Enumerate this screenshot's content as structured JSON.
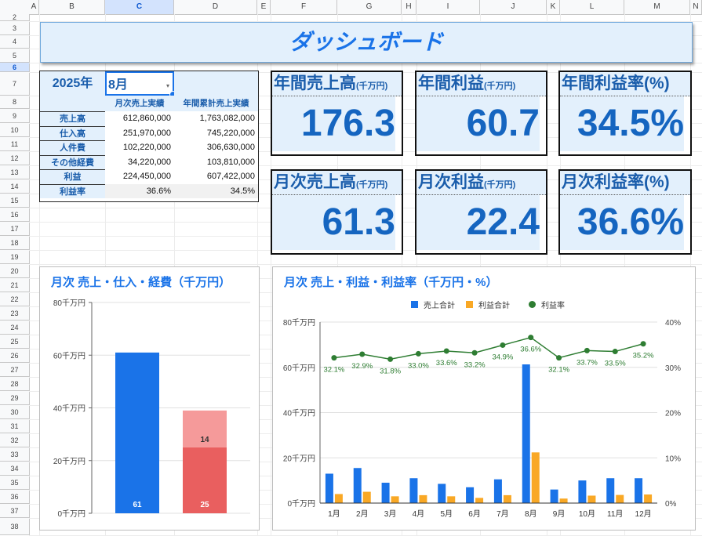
{
  "sheet": {
    "columns": [
      "A",
      "B",
      "C",
      "D",
      "E",
      "F",
      "G",
      "H",
      "I",
      "J",
      "K",
      "L",
      "M",
      "N"
    ],
    "selected_column": "C",
    "rows": [
      "2",
      "3",
      "4",
      "5",
      "6",
      "7",
      "8",
      "9",
      "10",
      "11",
      "12",
      "13",
      "14",
      "15",
      "16",
      "17",
      "18",
      "19",
      "20",
      "21",
      "22",
      "23",
      "24",
      "25",
      "26",
      "27",
      "28",
      "29",
      "30",
      "31",
      "32",
      "33",
      "34",
      "35",
      "36",
      "37",
      "38"
    ],
    "selected_row": "6"
  },
  "title": "ダッシュボード",
  "selector": {
    "year": "2025年",
    "month": "8月"
  },
  "table": {
    "headers": [
      "",
      "月次売上実績",
      "年間累計売上実績"
    ],
    "rows": [
      [
        "売上高",
        "612,860,000",
        "1,763,082,000"
      ],
      [
        "仕入高",
        "251,970,000",
        "745,220,000"
      ],
      [
        "人件費",
        "102,220,000",
        "306,630,000"
      ],
      [
        "その他経費",
        "34,220,000",
        "103,810,000"
      ],
      [
        "利益",
        "224,450,000",
        "607,422,000"
      ],
      [
        "利益率",
        "36.6%",
        "34.5%"
      ]
    ]
  },
  "kpis": [
    {
      "label": "年間売上高",
      "unit": "(千万円)",
      "value": "176.3"
    },
    {
      "label": "年間利益",
      "unit": "(千万円)",
      "value": "60.7"
    },
    {
      "label": "年間利益率(%)",
      "unit": "",
      "value": "34.5%"
    },
    {
      "label": "月次売上高",
      "unit": "(千万円)",
      "value": "61.3"
    },
    {
      "label": "月次利益",
      "unit": "(千万円)",
      "value": "22.4"
    },
    {
      "label": "月次利益率(%)",
      "unit": "",
      "value": "36.6%"
    }
  ],
  "colors": {
    "blue": "#1a73e8",
    "orange": "#f9a825",
    "green": "#2e7d32",
    "red": "#e95f5f",
    "pink": "#f59a9a"
  },
  "chart_data": [
    {
      "type": "bar",
      "title": "月次 売上・仕入・経費（千万円）",
      "ylim": [
        0,
        80
      ],
      "yticks": [
        "0千万円",
        "20千万円",
        "40千万円",
        "60千万円",
        "80千万円"
      ],
      "tick_values": [
        0,
        20,
        40,
        60,
        80
      ],
      "bars": [
        {
          "segments": [
            {
              "value": 61,
              "label": "61",
              "color": "#1a73e8"
            }
          ]
        },
        {
          "segments": [
            {
              "value": 25,
              "label": "25",
              "color": "#e95f5f"
            },
            {
              "value": 14,
              "label": "14",
              "color": "#f59a9a"
            }
          ]
        }
      ],
      "grid": true
    },
    {
      "type": "bar",
      "title": "月次 売上・利益・利益率（千万円・%）",
      "legend_position": "top",
      "categories": [
        "1月",
        "2月",
        "3月",
        "4月",
        "5月",
        "6月",
        "7月",
        "8月",
        "9月",
        "10月",
        "11月",
        "12月"
      ],
      "yticks_left": [
        "0千万円",
        "20千万円",
        "40千万円",
        "60千万円",
        "80千万円"
      ],
      "tick_values_left": [
        0,
        20,
        40,
        60,
        80
      ],
      "yticks_right": [
        "0%",
        "10%",
        "20%",
        "30%",
        "40%"
      ],
      "tick_values_right": [
        0,
        10,
        20,
        30,
        40
      ],
      "ylim_left": [
        0,
        80
      ],
      "ylim_right": [
        0,
        40
      ],
      "series": [
        {
          "name": "売上合計",
          "kind": "bar",
          "axis": "left",
          "color": "#1a73e8",
          "values": [
            13,
            15.5,
            9,
            11,
            8.5,
            7,
            10.5,
            61.3,
            6,
            10,
            11,
            11
          ]
        },
        {
          "name": "利益合計",
          "kind": "bar",
          "axis": "left",
          "color": "#f9a825",
          "values": [
            4,
            5,
            3,
            3.5,
            3,
            2.3,
            3.5,
            22.4,
            2,
            3.3,
            3.6,
            3.8
          ]
        },
        {
          "name": "利益率",
          "kind": "line",
          "axis": "right",
          "color": "#2e7d32",
          "values": [
            32.1,
            32.9,
            31.8,
            33.0,
            33.6,
            33.2,
            34.9,
            36.6,
            32.1,
            33.7,
            33.5,
            35.2
          ],
          "labels": [
            "32.1%",
            "32.9%",
            "31.8%",
            "33.0%",
            "33.6%",
            "33.2%",
            "34.9%",
            "36.6%",
            "32.1%",
            "33.7%",
            "33.5%",
            "35.2%"
          ]
        }
      ],
      "grid": true
    }
  ]
}
